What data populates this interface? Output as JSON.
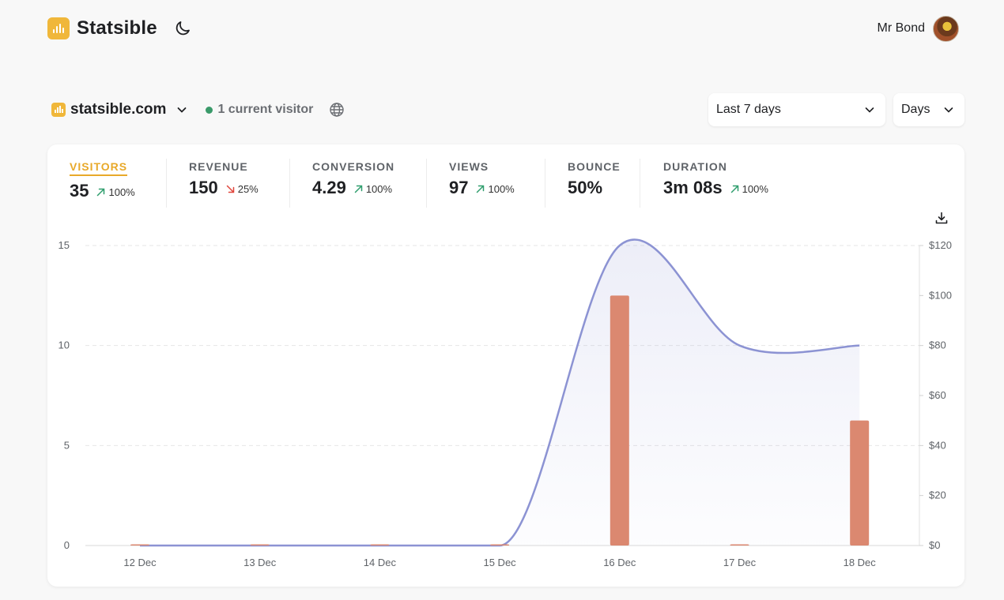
{
  "app": {
    "name": "Statsible"
  },
  "user": {
    "name": "Mr Bond"
  },
  "site": {
    "domain": "statsible.com",
    "live_label": "1 current visitor"
  },
  "filters": {
    "range": "Last 7 days",
    "interval": "Days"
  },
  "stats": [
    {
      "label": "VISITORS",
      "value": "35",
      "change": "100%",
      "dir": "up",
      "active": true
    },
    {
      "label": "REVENUE",
      "value": "150",
      "change": "25%",
      "dir": "down"
    },
    {
      "label": "CONVERSION",
      "value": "4.29",
      "change": "100%",
      "dir": "up"
    },
    {
      "label": "VIEWS",
      "value": "97",
      "change": "100%",
      "dir": "up"
    },
    {
      "label": "BOUNCE",
      "value": "50%",
      "change": "",
      "dir": "none"
    },
    {
      "label": "DURATION",
      "value": "3m 08s",
      "change": "100%",
      "dir": "up"
    }
  ],
  "colors": {
    "accent": "#e8a92a",
    "up": "#2f9e6d",
    "down": "#e0453b",
    "line": "#8c93d3",
    "bar": "#db8870"
  },
  "chart_data": {
    "type": "line+bar",
    "categories": [
      "12 Dec",
      "13 Dec",
      "14 Dec",
      "15 Dec",
      "16 Dec",
      "17 Dec",
      "18 Dec"
    ],
    "series": [
      {
        "name": "Visitors",
        "type": "line",
        "axis": "left",
        "values": [
          0,
          0,
          0,
          0,
          15,
          10,
          10
        ]
      },
      {
        "name": "Revenue",
        "type": "bar",
        "axis": "right",
        "values": [
          0,
          0,
          0,
          0,
          100,
          0,
          50
        ]
      }
    ],
    "left_axis": {
      "ylim": [
        0,
        15
      ],
      "ticks": [
        "0",
        "5",
        "10",
        "15"
      ]
    },
    "right_axis": {
      "ylim": [
        0,
        120
      ],
      "ticks": [
        "$0",
        "$20",
        "$40",
        "$60",
        "$80",
        "$100",
        "$120"
      ]
    }
  }
}
